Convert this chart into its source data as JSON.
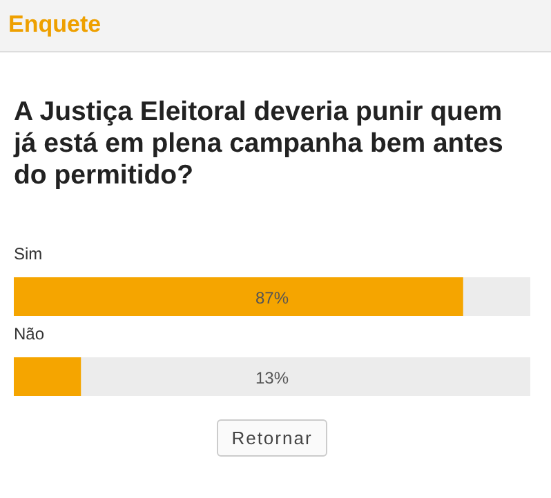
{
  "chart_data": {
    "type": "bar",
    "orientation": "horizontal",
    "title": "Enquete",
    "subtitle": "A Justiça Eleitoral deveria punir quem já está em plena campanha bem antes do permitido?",
    "categories": [
      "Sim",
      "Não"
    ],
    "values": [
      87,
      13
    ],
    "value_labels": [
      "87%",
      "13%"
    ],
    "color": "#f5a500",
    "xlim": [
      0,
      100
    ],
    "tick_labels": false,
    "annotations": [
      "Retornar"
    ]
  }
}
